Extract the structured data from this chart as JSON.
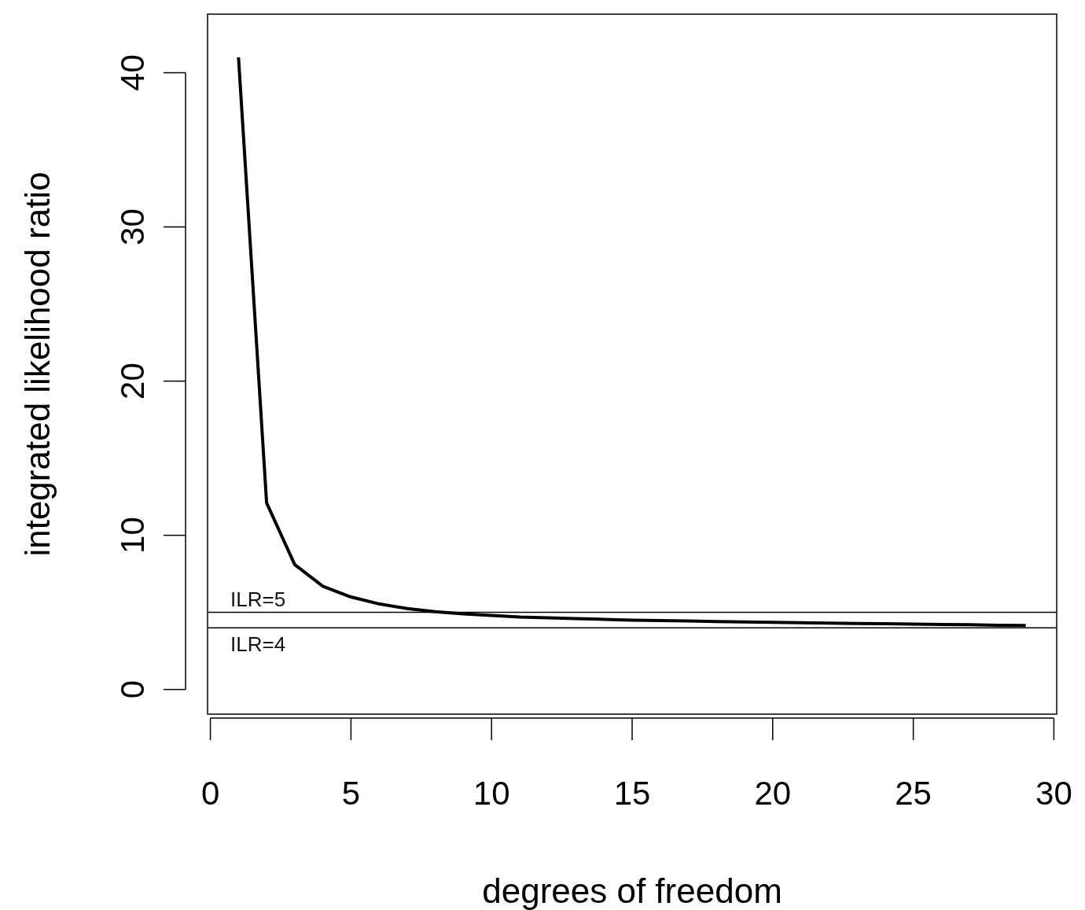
{
  "chart_data": {
    "type": "line",
    "xlabel": "degrees of freedom",
    "ylabel": "integrated likelihood ratio",
    "x": [
      1,
      2,
      3,
      4,
      5,
      6,
      7,
      8,
      9,
      10,
      11,
      12,
      13,
      14,
      15,
      16,
      17,
      18,
      19,
      20,
      21,
      22,
      23,
      24,
      25,
      26,
      27,
      28,
      29
    ],
    "series": [
      {
        "color": "#000000",
        "values": [
          41,
          12.1,
          8.1,
          6.7,
          6.0,
          5.55,
          5.25,
          5.05,
          4.9,
          4.8,
          4.7,
          4.65,
          4.6,
          4.55,
          4.5,
          4.47,
          4.44,
          4.41,
          4.38,
          4.35,
          4.33,
          4.3,
          4.28,
          4.26,
          4.24,
          4.22,
          4.2,
          4.17,
          4.15
        ]
      }
    ],
    "xlim": [
      -0.1,
      30.1
    ],
    "ylim": [
      -1.6,
      43.8
    ],
    "xticks": [
      0,
      5,
      10,
      15,
      20,
      25,
      30
    ],
    "yticks": [
      0,
      10,
      20,
      30,
      40
    ],
    "ref_lines": [
      {
        "axis": "y",
        "value": 5,
        "label": "ILR=5",
        "color": "#000000"
      },
      {
        "axis": "y",
        "value": 4,
        "label": "ILR=4",
        "color": "#000000"
      }
    ],
    "grid": false,
    "marker": "none",
    "line_style": "solid"
  }
}
